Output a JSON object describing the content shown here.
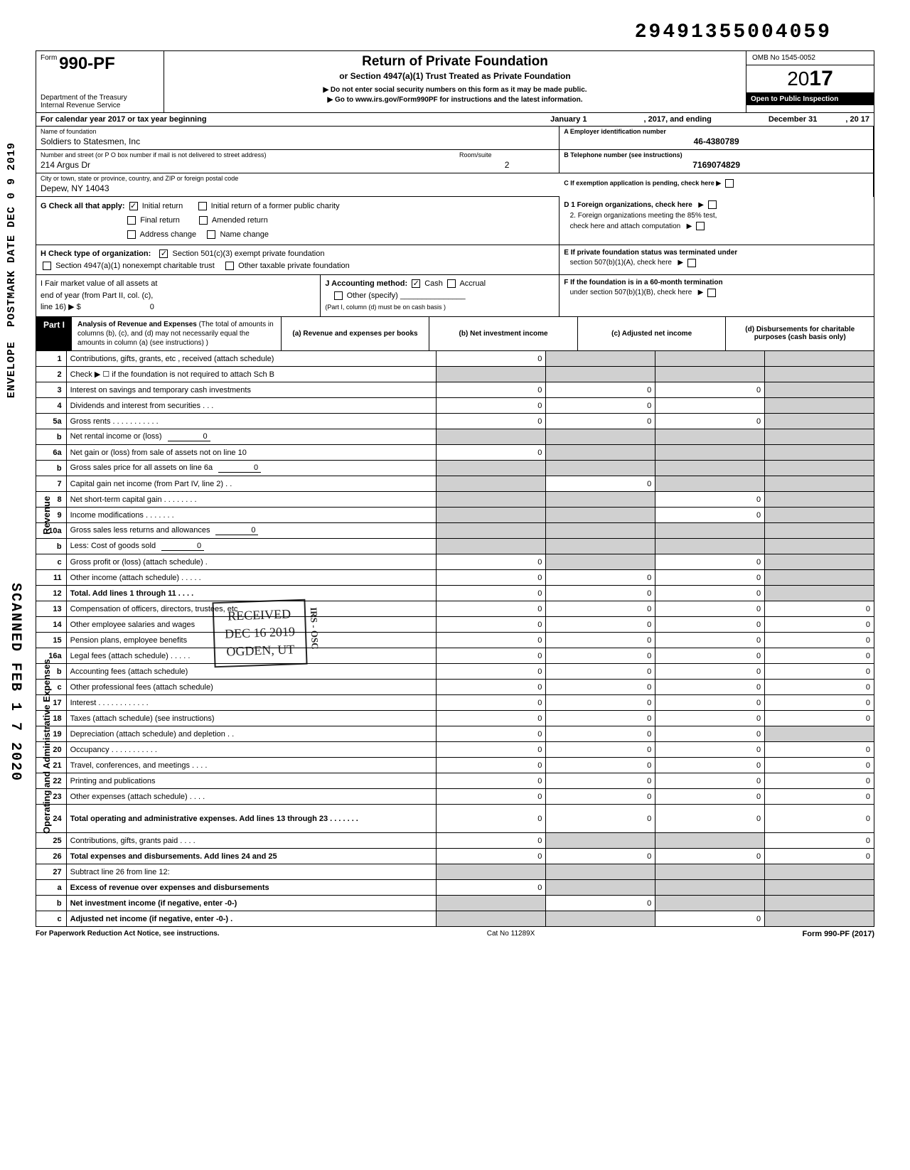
{
  "top_number": "29491355004059",
  "form": {
    "number": "990-PF",
    "prefix": "Form",
    "dept": "Department of the Treasury",
    "irs": "Internal Revenue Service",
    "title": "Return of Private Foundation",
    "subtitle": "or Section 4947(a)(1) Trust Treated as Private Foundation",
    "note1": "▶ Do not enter social security numbers on this form as it may be made public.",
    "note2": "▶ Go to www.irs.gov/Form990PF for instructions and the latest information.",
    "omb": "OMB No 1545-0052",
    "year": "2017",
    "open": "Open to Public Inspection"
  },
  "cal_year": {
    "prefix": "For calendar year 2017 or tax year beginning",
    "begin": "January 1",
    "mid": ", 2017, and ending",
    "end": "December 31",
    "yr": ", 20   17"
  },
  "id": {
    "name_label": "Name of foundation",
    "name": "Soldiers to Statesmen, Inc",
    "ein_label": "A  Employer identification number",
    "ein": "46-4380789",
    "addr_label": "Number and street (or P O  box number if mail is not delivered to street address)",
    "addr": "214 Argus Dr",
    "room_label": "Room/suite",
    "room": "2",
    "tel_label": "B  Telephone number (see instructions)",
    "tel": "7169074829",
    "city_label": "City or town, state or province, country, and ZIP or foreign postal code",
    "city": "Depew, NY 14043",
    "c_label": "C  If exemption application is pending, check here ▶"
  },
  "g": {
    "label": "G   Check all that apply:",
    "initial": "Initial return",
    "initial_former": "Initial return of a former public charity",
    "final": "Final return",
    "amended": "Amended return",
    "addrchg": "Address change",
    "namechg": "Name change",
    "d1": "D  1 Foreign organizations, check here",
    "d2a": "2. Foreign organizations meeting the 85% test,",
    "d2b": "check here and attach computation",
    "e1": "E  If private foundation status was terminated under",
    "e2": "section 507(b)(1)(A), check here"
  },
  "h": {
    "label": "H   Check type of organization:",
    "opt1": "Section 501(c)(3) exempt private foundation",
    "opt2": "Section 4947(a)(1) nonexempt charitable trust",
    "opt3": "Other taxable private foundation"
  },
  "i": {
    "fmv1": "I    Fair market value of all assets at",
    "fmv2": "end of year  (from Part II, col. (c),",
    "fmv3": "line 16) ▶ $",
    "fmv_val": "0",
    "fmv_note": "(Part I, column (d) must be on cash basis )",
    "acct": "J   Accounting method:",
    "cash": "Cash",
    "accrual": "Accrual",
    "other": "Other (specify)",
    "f1": "F  If the foundation is in a 60-month termination",
    "f2": "under section 507(b)(1)(B), check here"
  },
  "part1": {
    "label": "Part I",
    "title": "Analysis of Revenue and Expenses",
    "note": "(The total of amounts in columns (b), (c), and (d) may not necessarily equal the amounts in column (a) (see instructions) )",
    "col_a": "(a) Revenue and expenses per books",
    "col_b": "(b) Net investment income",
    "col_c": "(c) Adjusted net income",
    "col_d": "(d) Disbursements for charitable purposes (cash basis only)"
  },
  "sidelabels": {
    "revenue": "Revenue",
    "opexp": "Operating and Administrative Expenses"
  },
  "rows": [
    {
      "n": "1",
      "d": "Contributions, gifts, grants, etc , received (attach schedule)",
      "a": "0",
      "b": "",
      "c": "",
      "e": "",
      "sb": true,
      "sc": true,
      "se": true
    },
    {
      "n": "2",
      "d": "Check ▶ ☐ if the foundation is not required to attach Sch  B",
      "a": "",
      "b": "",
      "c": "",
      "e": "",
      "sa": true,
      "sb": true,
      "sc": true,
      "se": true
    },
    {
      "n": "3",
      "d": "Interest on savings and temporary cash investments",
      "a": "0",
      "b": "0",
      "c": "0",
      "e": "",
      "se": true
    },
    {
      "n": "4",
      "d": "Dividends and interest from securities   .     .    .",
      "a": "0",
      "b": "0",
      "c": "",
      "e": "",
      "se": true
    },
    {
      "n": "5a",
      "d": "Gross rents .    .    .    .    .    .    .    .    .    .    .",
      "a": "0",
      "b": "0",
      "c": "0",
      "e": "",
      "se": true
    },
    {
      "n": "b",
      "d": "Net rental income or (loss)",
      "inline": "0",
      "a": "",
      "b": "",
      "c": "",
      "e": "",
      "sa": true,
      "sb": true,
      "sc": true,
      "se": true
    },
    {
      "n": "6a",
      "d": "Net gain or (loss) from sale of assets not on line 10",
      "a": "0",
      "b": "",
      "c": "",
      "e": "",
      "sb": true,
      "sc": true,
      "se": true
    },
    {
      "n": "b",
      "d": "Gross sales price for all assets on line 6a",
      "inline": "0",
      "a": "",
      "b": "",
      "c": "",
      "e": "",
      "sa": true,
      "sb": true,
      "sc": true,
      "se": true
    },
    {
      "n": "7",
      "d": "Capital gain net income (from Part IV, line 2)  .   .",
      "a": "",
      "b": "0",
      "c": "",
      "e": "",
      "sa": true,
      "sc": true,
      "se": true
    },
    {
      "n": "8",
      "d": "Net short-term capital gain .   .   .   .   .   .   .   .",
      "a": "",
      "b": "",
      "c": "0",
      "e": "",
      "sa": true,
      "sb": true,
      "se": true
    },
    {
      "n": "9",
      "d": "Income modifications            .   .   .   .   .   .   .",
      "a": "",
      "b": "",
      "c": "0",
      "e": "",
      "sa": true,
      "sb": true,
      "se": true
    },
    {
      "n": "10a",
      "d": "Gross sales less returns and allowances",
      "inline": "0",
      "a": "",
      "b": "",
      "c": "",
      "e": "",
      "sa": true,
      "sb": true,
      "sc": true,
      "se": true
    },
    {
      "n": "b",
      "d": "Less: Cost of goods sold",
      "inline": "0",
      "a": "",
      "b": "",
      "c": "",
      "e": "",
      "sa": true,
      "sb": true,
      "sc": true,
      "se": true
    },
    {
      "n": "c",
      "d": "Gross profit or (loss) (attach schedule)     .",
      "a": "0",
      "b": "",
      "c": "0",
      "e": "",
      "sb": true,
      "se": true
    },
    {
      "n": "11",
      "d": "Other income (attach schedule)   .   .   .   .   .",
      "a": "0",
      "b": "0",
      "c": "0",
      "e": "",
      "se": true
    },
    {
      "n": "12",
      "d": "Total. Add lines 1 through 11     .    .    .    .",
      "a": "0",
      "b": "0",
      "c": "0",
      "e": "",
      "bold": true,
      "se": true
    },
    {
      "n": "13",
      "d": "Compensation of officers, directors, trustees, etc",
      "a": "0",
      "b": "0",
      "c": "0",
      "e": "0"
    },
    {
      "n": "14",
      "d": "Other employee salaries and wages",
      "a": "0",
      "b": "0",
      "c": "0",
      "e": "0"
    },
    {
      "n": "15",
      "d": "Pension plans, employee benefits",
      "a": "0",
      "b": "0",
      "c": "0",
      "e": "0"
    },
    {
      "n": "16a",
      "d": "Legal fees (attach schedule)   .   .   .   .   .",
      "a": "0",
      "b": "0",
      "c": "0",
      "e": "0"
    },
    {
      "n": "b",
      "d": "Accounting fees (attach schedule)",
      "a": "0",
      "b": "0",
      "c": "0",
      "e": "0"
    },
    {
      "n": "c",
      "d": "Other professional fees (attach schedule)",
      "a": "0",
      "b": "0",
      "c": "0",
      "e": "0"
    },
    {
      "n": "17",
      "d": "Interest   .   .   .   .   .   .   .   .   .   .   .   .",
      "a": "0",
      "b": "0",
      "c": "0",
      "e": "0"
    },
    {
      "n": "18",
      "d": "Taxes (attach schedule) (see instructions)",
      "a": "0",
      "b": "0",
      "c": "0",
      "e": "0"
    },
    {
      "n": "19",
      "d": "Depreciation (attach schedule) and depletion .   .",
      "a": "0",
      "b": "0",
      "c": "0",
      "e": "",
      "se": true
    },
    {
      "n": "20",
      "d": "Occupancy .   .   .   .   .   .        .   .   .   .   .",
      "a": "0",
      "b": "0",
      "c": "0",
      "e": "0"
    },
    {
      "n": "21",
      "d": "Travel, conferences, and meetings   .   .   .   .",
      "a": "0",
      "b": "0",
      "c": "0",
      "e": "0"
    },
    {
      "n": "22",
      "d": "Printing and publications",
      "a": "0",
      "b": "0",
      "c": "0",
      "e": "0"
    },
    {
      "n": "23",
      "d": "Other expenses (attach schedule)    .   .   .   .",
      "a": "0",
      "b": "0",
      "c": "0",
      "e": "0"
    },
    {
      "n": "24",
      "d": "Total operating and administrative expenses. Add lines 13 through 23 .          .    .    .    .    .    .",
      "a": "0",
      "b": "0",
      "c": "0",
      "e": "0",
      "bold": true,
      "tall": true
    },
    {
      "n": "25",
      "d": "Contributions, gifts, grants paid    .    .    .    .",
      "a": "0",
      "b": "",
      "c": "",
      "e": "0",
      "sb": true,
      "sc": true
    },
    {
      "n": "26",
      "d": "Total expenses and disbursements. Add lines 24 and 25",
      "a": "0",
      "b": "0",
      "c": "0",
      "e": "0",
      "bold": true
    },
    {
      "n": "27",
      "d": "Subtract line 26 from line 12:",
      "a": "",
      "b": "",
      "c": "",
      "e": "",
      "sa": true,
      "sb": true,
      "sc": true,
      "se": true
    },
    {
      "n": "a",
      "d": "Excess of revenue over expenses and disbursements",
      "a": "0",
      "b": "",
      "c": "",
      "e": "",
      "bold": true,
      "sb": true,
      "sc": true,
      "se": true
    },
    {
      "n": "b",
      "d": "Net investment income (if negative, enter -0-)",
      "a": "",
      "b": "0",
      "c": "",
      "e": "",
      "bold": true,
      "sa": true,
      "sc": true,
      "se": true
    },
    {
      "n": "c",
      "d": "Adjusted net income (if negative, enter -0-)  .",
      "a": "",
      "b": "",
      "c": "0",
      "e": "",
      "bold": true,
      "sa": true,
      "sb": true,
      "se": true
    }
  ],
  "stamps": {
    "postmark": "POSTMARK DATE  DEC 0 9 2019",
    "envelope": "ENVELOPE",
    "scanned": "SCANNED  FEB 1 7 2020",
    "received_l1": "RECEIVED",
    "received_l2": "DEC 16 2019",
    "received_l3": "OGDEN, UT",
    "irs_osc": "IRS - OSC"
  },
  "footer": {
    "paperwork": "For Paperwork Reduction Act Notice, see instructions.",
    "cat": "Cat No 11289X",
    "form": "Form 990-PF (2017)"
  }
}
